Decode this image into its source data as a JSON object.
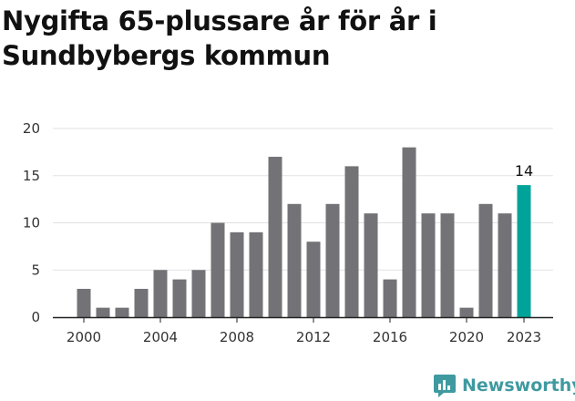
{
  "title": "Nygifta 65-plussare år för år i Sundbybergs kommun",
  "brand": {
    "name": "Newsworthy",
    "icon": "newsworthy-logo-icon",
    "color": "#3f9aa0"
  },
  "colors": {
    "bar": "#737277",
    "highlight": "#00a39a",
    "grid": "#e2e2e2",
    "axis": "#222222"
  },
  "chart_data": {
    "type": "bar",
    "x": [
      2000,
      2001,
      2002,
      2003,
      2004,
      2005,
      2006,
      2007,
      2008,
      2009,
      2010,
      2011,
      2012,
      2013,
      2014,
      2015,
      2016,
      2017,
      2018,
      2019,
      2020,
      2021,
      2022,
      2023
    ],
    "values": [
      3,
      1,
      1,
      3,
      5,
      4,
      5,
      10,
      9,
      9,
      17,
      12,
      8,
      12,
      16,
      11,
      4,
      18,
      11,
      11,
      1,
      12,
      11,
      14
    ],
    "highlight_index": 23,
    "data_labels": [
      {
        "index": 23,
        "text": "14"
      }
    ],
    "xticks": [
      2000,
      2004,
      2008,
      2012,
      2016,
      2020,
      2023
    ],
    "yticks": [
      0,
      5,
      10,
      15,
      20
    ],
    "ylim": [
      0,
      20
    ],
    "grid": true,
    "title": "Nygifta 65-plussare år för år i Sundbybergs kommun",
    "xlabel": "",
    "ylabel": ""
  }
}
